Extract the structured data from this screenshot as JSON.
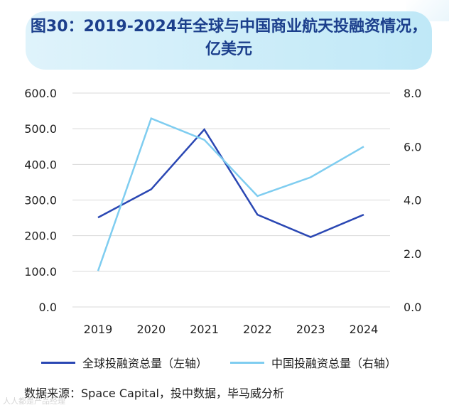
{
  "header": {
    "title_line1": "图30：2019-2024年全球与中国商业航天投融资情况，",
    "title_line2": "亿美元"
  },
  "chart_data": {
    "type": "line",
    "title": "图30：2019-2024年全球与中国商业航天投融资情况，亿美元",
    "categories": [
      "2019",
      "2020",
      "2021",
      "2022",
      "2023",
      "2024"
    ],
    "left_axis": {
      "ylim": [
        0,
        600
      ],
      "ticks": [
        "0.0",
        "100.0",
        "200.0",
        "300.0",
        "400.0",
        "500.0",
        "600.0"
      ]
    },
    "right_axis": {
      "ylim": [
        0,
        8
      ],
      "ticks": [
        "0.0",
        "2.0",
        "4.0",
        "6.0",
        "8.0"
      ]
    },
    "grid": true,
    "legend_position": "bottom",
    "series": [
      {
        "name": "全球投融资总量（左轴）",
        "axis": "left",
        "color": "#2a47b3",
        "values": [
          251,
          330,
          498,
          259,
          196,
          259
        ]
      },
      {
        "name": "中国投融资总量（右轴）",
        "axis": "right",
        "color": "#7fcdf0",
        "values": [
          1.35,
          7.05,
          6.25,
          4.15,
          4.85,
          6.0
        ]
      }
    ]
  },
  "footer": {
    "source": "数据来源：Space Capital，投中数据，毕马威分析",
    "watermark": "人人都是产品经理"
  },
  "colors": {
    "title_text": "#1c3f8c",
    "grid": "#d9d9d9"
  }
}
